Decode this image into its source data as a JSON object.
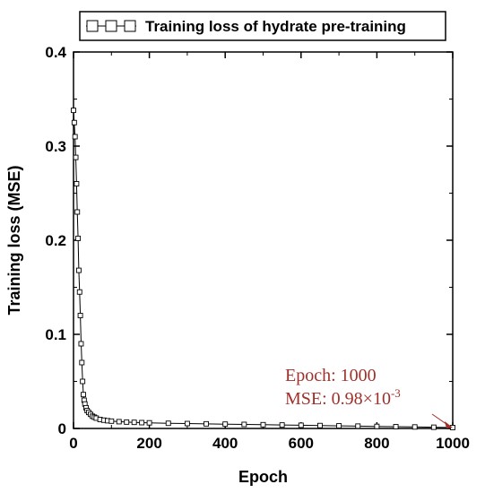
{
  "chart_data": {
    "type": "line",
    "xlabel": "Epoch",
    "ylabel": "Training loss (MSE)",
    "xlim": [
      0,
      1000
    ],
    "ylim": [
      0,
      0.4
    ],
    "xticks": [
      "0",
      "200",
      "400",
      "600",
      "800",
      "1000"
    ],
    "yticks": [
      "0",
      "0.1",
      "0.2",
      "0.3",
      "0.4"
    ],
    "grid": false,
    "legend_position": "top",
    "series": [
      {
        "name": "Training loss of hydrate pre-training",
        "marker": "open-square",
        "color": "#000000",
        "x": [
          0,
          2,
          4,
          6,
          8,
          10,
          12,
          14,
          16,
          18,
          20,
          22,
          24,
          26,
          28,
          30,
          33,
          36,
          40,
          45,
          50,
          55,
          60,
          70,
          80,
          90,
          100,
          120,
          140,
          160,
          180,
          200,
          250,
          300,
          350,
          400,
          450,
          500,
          550,
          600,
          650,
          700,
          750,
          800,
          850,
          900,
          950,
          1000
        ],
        "y": [
          0.338,
          0.325,
          0.31,
          0.288,
          0.26,
          0.23,
          0.202,
          0.168,
          0.145,
          0.12,
          0.09,
          0.07,
          0.05,
          0.036,
          0.03,
          0.026,
          0.022,
          0.019,
          0.017,
          0.015,
          0.013,
          0.012,
          0.011,
          0.0095,
          0.0088,
          0.0082,
          0.0078,
          0.0072,
          0.0068,
          0.0065,
          0.0062,
          0.006,
          0.0055,
          0.0052,
          0.0049,
          0.0046,
          0.0043,
          0.004,
          0.0037,
          0.0034,
          0.0031,
          0.0028,
          0.0025,
          0.0022,
          0.0019,
          0.0016,
          0.0013,
          0.00098
        ]
      }
    ],
    "annotation": {
      "line1": "Epoch: 1000",
      "line2_prefix": "MSE: 0.98×10",
      "line2_exponent": "-3",
      "color": "#a0302a",
      "points_to": {
        "x": 1000,
        "y": 0.00098
      }
    }
  }
}
